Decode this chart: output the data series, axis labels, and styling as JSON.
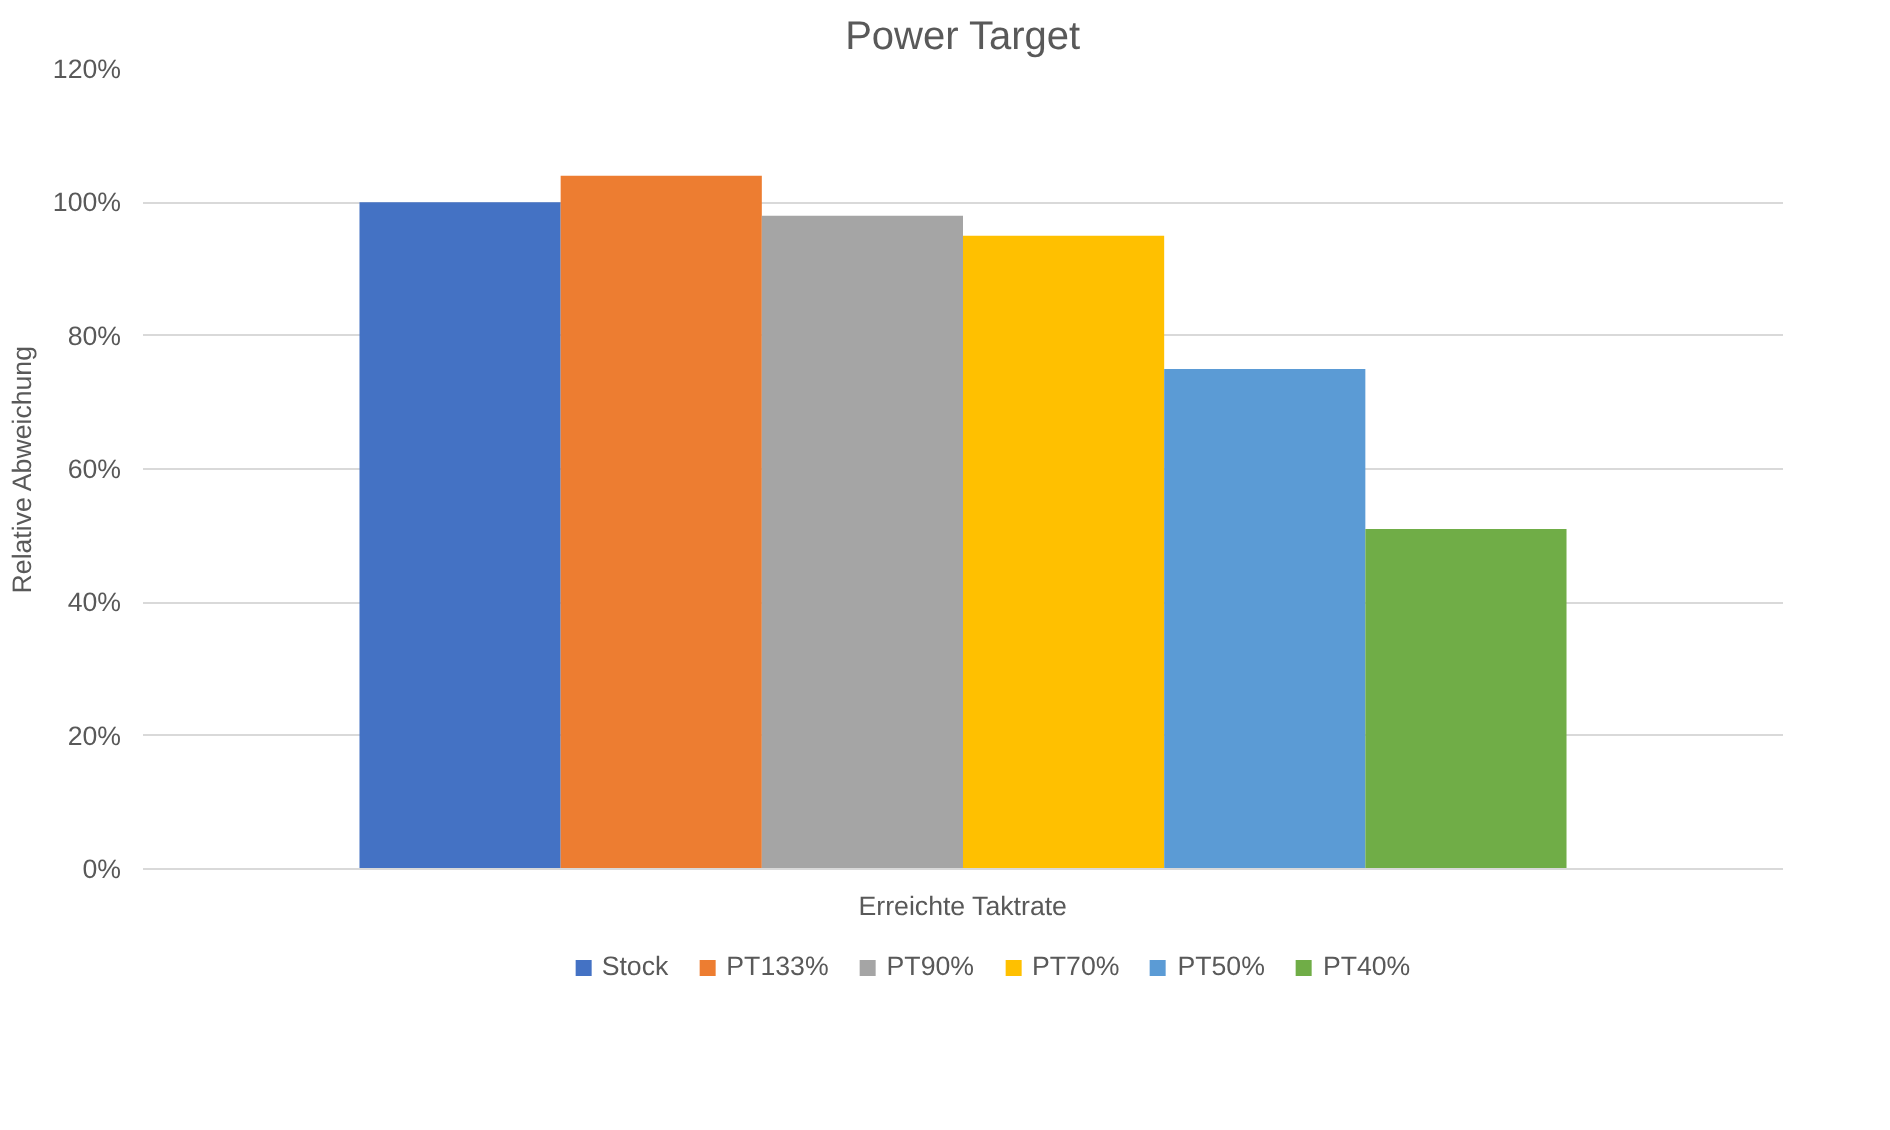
{
  "chart_data": {
    "type": "bar",
    "title": "Power Target",
    "ylabel": "Relative Abweichung",
    "categories": [
      "Erreichte Taktrate"
    ],
    "series": [
      {
        "name": "Stock",
        "color": "#4472c4",
        "values": [
          100
        ]
      },
      {
        "name": "PT133%",
        "color": "#ed7d31",
        "values": [
          104
        ]
      },
      {
        "name": "PT90%",
        "color": "#a5a5a5",
        "values": [
          98
        ]
      },
      {
        "name": "PT70%",
        "color": "#ffc000",
        "values": [
          95
        ]
      },
      {
        "name": "PT50%",
        "color": "#5b9bd5",
        "values": [
          75
        ]
      },
      {
        "name": "PT40%",
        "color": "#70ad47",
        "values": [
          51
        ]
      }
    ],
    "ylim": [
      0,
      120
    ],
    "yticks": [
      {
        "value": 0,
        "label": "0%"
      },
      {
        "value": 20,
        "label": "20%"
      },
      {
        "value": 40,
        "label": "40%"
      },
      {
        "value": 60,
        "label": "60%"
      },
      {
        "value": 80,
        "label": "80%"
      },
      {
        "value": 100,
        "label": "100%"
      },
      {
        "value": 120,
        "label": "120%"
      }
    ],
    "grid": "y",
    "legend": "bottom"
  }
}
